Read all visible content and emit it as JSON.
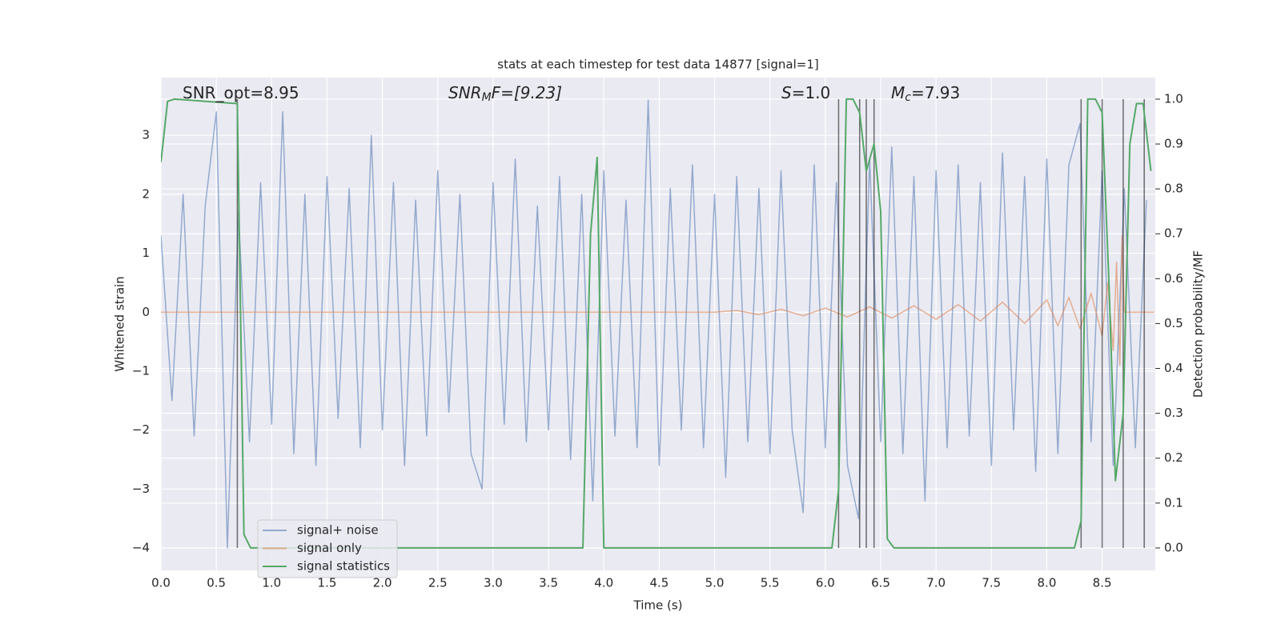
{
  "chart_data": {
    "type": "line",
    "title": "stats at each timestep for test data 14877 [signal=1]",
    "xlabel": "Time (s)",
    "ylabel": "Whitened strain",
    "y2label": "Detection probability/MF",
    "xlim": [
      0,
      8.98
    ],
    "ylim": [
      -4.38,
      3.98
    ],
    "y2lim": [
      -0.05,
      1.048
    ],
    "xticks": [
      {
        "value": 0,
        "label": "0.0"
      },
      0.5,
      {
        "value": 1,
        "label": "1.0"
      },
      1.5,
      {
        "value": 2,
        "label": "2.0"
      },
      2.5,
      {
        "value": 3,
        "label": "3.0"
      },
      3.5,
      {
        "value": 4,
        "label": "4.0"
      },
      4.5,
      {
        "value": 5,
        "label": "5.0"
      },
      5.5,
      {
        "value": 6,
        "label": "6.0"
      },
      6.5,
      {
        "value": 7,
        "label": "7.0"
      },
      7.5,
      {
        "value": 8,
        "label": "8.0"
      },
      8.5
    ],
    "yticks": [
      {
        "value": -4,
        "label": "−4"
      },
      {
        "value": -3,
        "label": "−3"
      },
      {
        "value": -2,
        "label": "−2"
      },
      {
        "value": -1,
        "label": "−1"
      },
      0,
      1,
      2,
      3
    ],
    "y2ticks": [
      {
        "value": 0,
        "label": "0.0"
      },
      0.1,
      0.2,
      0.3,
      0.4,
      0.5,
      0.6,
      0.7,
      0.8,
      0.9,
      {
        "value": 1,
        "label": "1.0"
      }
    ],
    "grid": true,
    "legend": "lower left",
    "series": [
      {
        "name": "signal+ noise",
        "color": "#4c72b0",
        "x": [
          0.0,
          0.1,
          0.2,
          0.3,
          0.4,
          0.5,
          0.6,
          0.7,
          0.8,
          0.9,
          1.0,
          1.1,
          1.2,
          1.3,
          1.4,
          1.5,
          1.6,
          1.7,
          1.8,
          1.9,
          2.0,
          2.1,
          2.2,
          2.3,
          2.4,
          2.5,
          2.6,
          2.7,
          2.8,
          2.9,
          3.0,
          3.1,
          3.2,
          3.3,
          3.4,
          3.5,
          3.6,
          3.7,
          3.8,
          3.9,
          4.0,
          4.1,
          4.2,
          4.3,
          4.4,
          4.5,
          4.6,
          4.7,
          4.8,
          4.9,
          5.0,
          5.1,
          5.2,
          5.3,
          5.4,
          5.5,
          5.6,
          5.7,
          5.8,
          5.9,
          6.0,
          6.1,
          6.2,
          6.3,
          6.4,
          6.5,
          6.6,
          6.7,
          6.8,
          6.9,
          7.0,
          7.1,
          7.2,
          7.3,
          7.4,
          7.5,
          7.6,
          7.7,
          7.8,
          7.9,
          8.0,
          8.1,
          8.2,
          8.3,
          8.4,
          8.5,
          8.6,
          8.7,
          8.8,
          8.9
        ],
        "values": [
          1.3,
          -1.5,
          2.0,
          -2.1,
          1.8,
          3.4,
          -4.0,
          1.7,
          -2.2,
          2.2,
          -1.9,
          3.4,
          -2.4,
          2.0,
          -2.6,
          2.3,
          -1.8,
          2.1,
          -2.3,
          3.0,
          -2.0,
          2.2,
          -2.6,
          1.9,
          -2.1,
          2.4,
          -1.7,
          2.0,
          -2.4,
          -3.0,
          2.2,
          -1.9,
          2.6,
          -2.2,
          1.8,
          -2.0,
          2.3,
          -2.5,
          2.0,
          -3.2,
          2.4,
          -2.1,
          1.9,
          -2.3,
          3.6,
          -2.6,
          2.1,
          -2.0,
          2.5,
          -2.3,
          2.0,
          -2.8,
          2.3,
          -2.2,
          2.1,
          -2.4,
          2.4,
          -2.0,
          -3.4,
          2.5,
          -2.3,
          2.2,
          -2.6,
          -3.5,
          2.6,
          -2.2,
          2.8,
          -2.4,
          2.3,
          -3.2,
          2.4,
          -2.3,
          2.5,
          -2.1,
          2.2,
          -2.6,
          2.7,
          -2.0,
          2.3,
          -2.7,
          2.6,
          -2.4,
          2.5,
          3.2,
          -2.2,
          2.4,
          -2.6,
          2.1,
          -2.3,
          1.9
        ]
      },
      {
        "name": "signal only",
        "color": "#dd8452",
        "x": [
          0,
          5.0,
          5.2,
          5.4,
          5.6,
          5.8,
          6.0,
          6.2,
          6.4,
          6.6,
          6.8,
          7.0,
          7.2,
          7.4,
          7.6,
          7.8,
          8.0,
          8.1,
          8.2,
          8.3,
          8.4,
          8.5,
          8.55,
          8.6,
          8.63,
          8.66,
          8.68,
          8.7,
          8.97
        ],
        "values": [
          0,
          0,
          0.03,
          -0.04,
          0.05,
          -0.06,
          0.07,
          -0.08,
          0.09,
          -0.1,
          0.11,
          -0.12,
          0.13,
          -0.15,
          0.17,
          -0.19,
          0.21,
          -0.23,
          0.25,
          -0.28,
          0.32,
          -0.4,
          0.5,
          -0.65,
          0.85,
          -0.9,
          1.3,
          0,
          0
        ]
      },
      {
        "name": "signal statistics",
        "color": "#55a868",
        "axis": "y2",
        "x": [
          0,
          0.06,
          0.12,
          0.69,
          0.75,
          0.81,
          3.81,
          3.88,
          3.94,
          4.0,
          6.06,
          6.12,
          6.19,
          6.25,
          6.31,
          6.37,
          6.44,
          6.5,
          6.56,
          6.62,
          8.25,
          8.31,
          8.37,
          8.44,
          8.5,
          8.56,
          8.62,
          8.69,
          8.75,
          8.81,
          8.87,
          8.94
        ],
        "values": [
          0.86,
          0.995,
          1.0,
          0.99,
          0.03,
          0.0,
          0.0,
          0.7,
          0.87,
          0.0,
          0.0,
          0.13,
          1.0,
          1.0,
          0.97,
          0.84,
          0.9,
          0.75,
          0.02,
          0.0,
          0.0,
          0.06,
          1.0,
          1.0,
          0.97,
          0.6,
          0.15,
          0.3,
          0.9,
          0.99,
          0.99,
          0.84
        ]
      }
    ],
    "vlines": {
      "x": [
        0.69,
        6.12,
        6.31,
        6.37,
        6.44,
        8.31,
        8.5,
        8.69,
        8.88
      ],
      "ymin": 0,
      "ymax": 1,
      "axis": "y2",
      "color": "#000000"
    },
    "annotations": [
      {
        "parts": [
          "SNR_opt=8.95"
        ]
      },
      {
        "parts": [
          "SNR",
          "M",
          "F=[9.23]"
        ]
      },
      {
        "parts": [
          "S",
          "=1.0"
        ]
      },
      {
        "parts": [
          "M",
          "c",
          "=7.93"
        ]
      }
    ]
  }
}
